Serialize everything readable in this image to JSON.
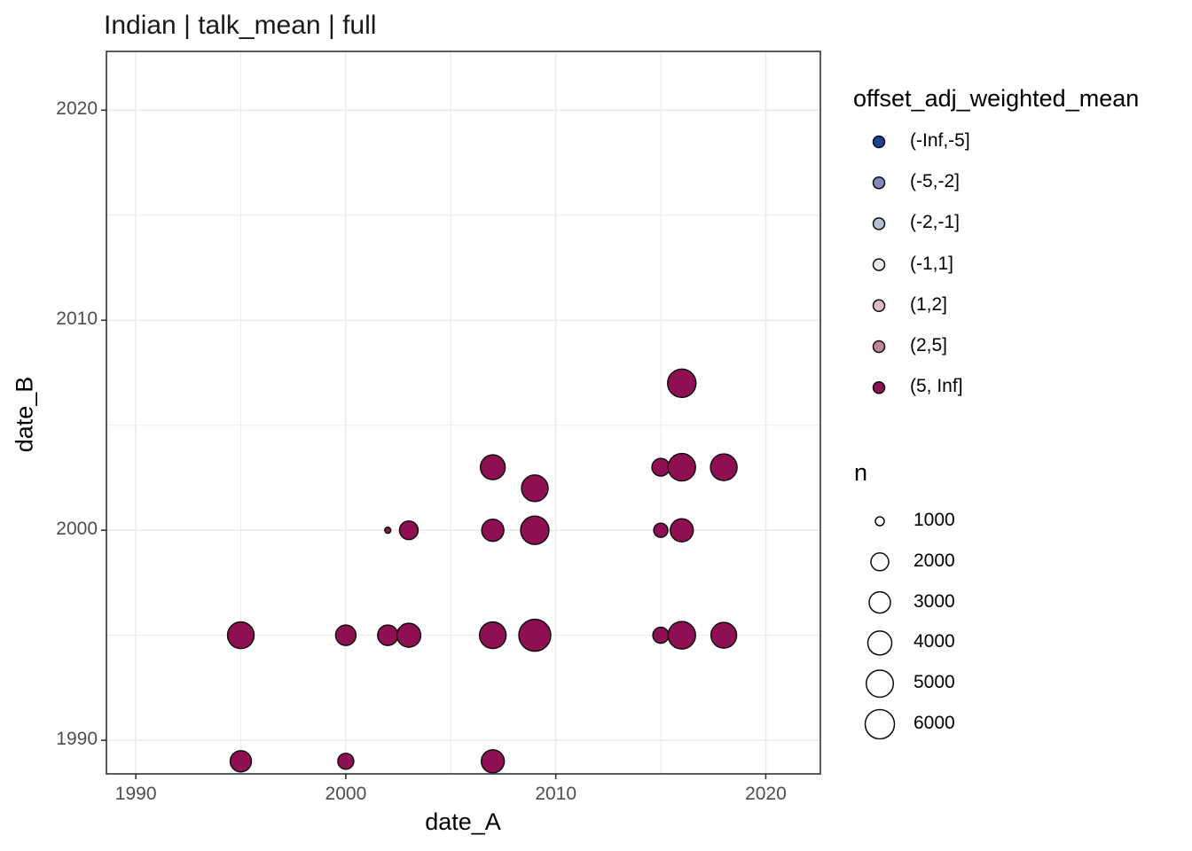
{
  "title": "Indian | talk_mean | full",
  "chart_data": {
    "type": "scatter",
    "subtype": "bubble",
    "title": "Indian | talk_mean | full",
    "xlabel": "date_A",
    "ylabel": "date_B",
    "xlim": [
      1988.6,
      2022.6
    ],
    "ylim": [
      1988.4,
      2022.8
    ],
    "x_ticks": [
      1990,
      2000,
      2010,
      2020
    ],
    "y_ticks": [
      1990,
      2000,
      2010,
      2020
    ],
    "x_minor_ticks": [
      1995,
      2005,
      2015
    ],
    "y_minor_ticks": [
      1995,
      2005,
      2015
    ],
    "grid": true,
    "panel_background": "#ffffff",
    "grid_color": "#ebebeb",
    "panel_border_color": "#333333",
    "tick_label_color": "#4d4d4d",
    "point_fill": "#8e0f52",
    "point_stroke": "#0a0a0a",
    "legend_position": "right",
    "points": [
      {
        "date_A": 1995,
        "date_B": 1989,
        "n": 3000,
        "diameter": 24,
        "category": "(5, Inf]"
      },
      {
        "date_A": 2000,
        "date_B": 1989,
        "n": 1700,
        "diameter": 18,
        "category": "(5, Inf]"
      },
      {
        "date_A": 2007,
        "date_B": 1989,
        "n": 3500,
        "diameter": 26,
        "category": "(5, Inf]"
      },
      {
        "date_A": 1995,
        "date_B": 1995,
        "n": 4800,
        "diameter": 30,
        "category": "(5, Inf]"
      },
      {
        "date_A": 2000,
        "date_B": 1995,
        "n": 2700,
        "diameter": 23,
        "category": "(5, Inf]"
      },
      {
        "date_A": 2002,
        "date_B": 1995,
        "n": 2700,
        "diameter": 23,
        "category": "(5, Inf]"
      },
      {
        "date_A": 2003,
        "date_B": 1995,
        "n": 3900,
        "diameter": 27,
        "category": "(5, Inf]"
      },
      {
        "date_A": 2007,
        "date_B": 1995,
        "n": 4800,
        "diameter": 30,
        "category": "(5, Inf]"
      },
      {
        "date_A": 2009,
        "date_B": 1995,
        "n": 7000,
        "diameter": 36,
        "category": "(5, Inf]"
      },
      {
        "date_A": 2015,
        "date_B": 1995,
        "n": 1700,
        "diameter": 18,
        "category": "(5, Inf]"
      },
      {
        "date_A": 2016,
        "date_B": 1995,
        "n": 5200,
        "diameter": 31,
        "category": "(5, Inf]"
      },
      {
        "date_A": 2018,
        "date_B": 1995,
        "n": 4500,
        "diameter": 29,
        "category": "(5, Inf]"
      },
      {
        "date_A": 2002,
        "date_B": 2000,
        "n": 400,
        "diameter": 7,
        "category": "(5, Inf]"
      },
      {
        "date_A": 2003,
        "date_B": 2000,
        "n": 2200,
        "diameter": 21,
        "category": "(5, Inf]"
      },
      {
        "date_A": 2007,
        "date_B": 2000,
        "n": 3300,
        "diameter": 25,
        "category": "(5, Inf]"
      },
      {
        "date_A": 2009,
        "date_B": 2000,
        "n": 5500,
        "diameter": 32,
        "category": "(5, Inf]"
      },
      {
        "date_A": 2015,
        "date_B": 2000,
        "n": 1400,
        "diameter": 16,
        "category": "(5, Inf]"
      },
      {
        "date_A": 2016,
        "date_B": 2000,
        "n": 3500,
        "diameter": 26,
        "category": "(5, Inf]"
      },
      {
        "date_A": 2009,
        "date_B": 2002,
        "n": 4800,
        "diameter": 30,
        "category": "(5, Inf]"
      },
      {
        "date_A": 2007,
        "date_B": 2003,
        "n": 4200,
        "diameter": 28,
        "category": "(5, Inf]"
      },
      {
        "date_A": 2015,
        "date_B": 2003,
        "n": 2000,
        "diameter": 20,
        "category": "(5, Inf]"
      },
      {
        "date_A": 2016,
        "date_B": 2003,
        "n": 5200,
        "diameter": 31,
        "category": "(5, Inf]"
      },
      {
        "date_A": 2018,
        "date_B": 2003,
        "n": 4800,
        "diameter": 30,
        "category": "(5, Inf]"
      },
      {
        "date_A": 2016,
        "date_B": 2007,
        "n": 5500,
        "diameter": 32,
        "category": "(5, Inf]"
      }
    ],
    "color_legend": {
      "title": "offset_adj_weighted_mean",
      "entries": [
        {
          "label": "(-Inf,-5]",
          "color": "#1e4097"
        },
        {
          "label": "(-5,-2]",
          "color": "#8389bf"
        },
        {
          "label": "(-2,-1]",
          "color": "#babed8"
        },
        {
          "label": "(-1,1]",
          "color": "#e9e7e8"
        },
        {
          "label": "(1,2]",
          "color": "#dcbdc8"
        },
        {
          "label": "(2,5]",
          "color": "#c28598"
        },
        {
          "label": "(5, Inf]",
          "color": "#8e0f52"
        }
      ]
    },
    "size_legend": {
      "title": "n",
      "entries": [
        {
          "label": "1000",
          "diameter": 10
        },
        {
          "label": "2000",
          "diameter": 20
        },
        {
          "label": "3000",
          "diameter": 24
        },
        {
          "label": "4000",
          "diameter": 27
        },
        {
          "label": "5000",
          "diameter": 30.5
        },
        {
          "label": "6000",
          "diameter": 33
        }
      ]
    }
  }
}
